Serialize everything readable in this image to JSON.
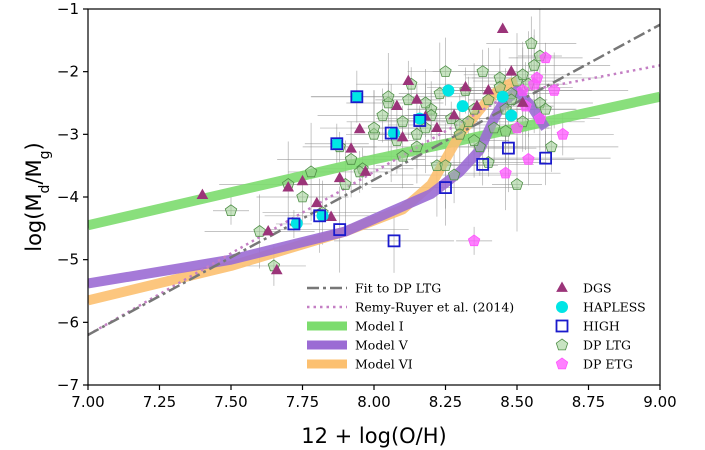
{
  "chart_data": {
    "type": "scatter",
    "xlabel": "12 + log(O/H)",
    "ylabel": "log(M_d/M_g)",
    "xlim": [
      7.0,
      9.0
    ],
    "ylim": [
      -7,
      -1
    ],
    "xticks": [
      "7.00",
      "7.25",
      "7.50",
      "7.75",
      "8.00",
      "8.25",
      "8.50",
      "8.75",
      "9.00"
    ],
    "yticks": [
      "−7",
      "−6",
      "−5",
      "−4",
      "−3",
      "−2",
      "−1"
    ],
    "grid": false,
    "legend_position": "lower-right",
    "lines": [
      {
        "name": "Fit to DP LTG",
        "style": "dashdot",
        "color": "#777777",
        "width": 2.5,
        "x": [
          7.0,
          9.0
        ],
        "y": [
          -6.2,
          -1.25
        ]
      },
      {
        "name": "Remy-Ruyer et al. (2014)",
        "style": "dotted",
        "color": "#c47fc4",
        "width": 2.5,
        "x": [
          7.0,
          8.48,
          9.0
        ],
        "y": [
          -6.2,
          -2.35,
          -1.9
        ]
      },
      {
        "name": "Model I",
        "style": "solid",
        "color": "#7cdc6e",
        "width": 10,
        "x": [
          7.0,
          8.0,
          9.0
        ],
        "y": [
          -4.45,
          -3.4,
          -2.4
        ]
      },
      {
        "name": "Model V",
        "style": "solid",
        "color": "#9b6bd4",
        "width": 10,
        "x": [
          7.0,
          7.5,
          7.9,
          8.1,
          8.2,
          8.3,
          8.37,
          8.42,
          8.45,
          8.5,
          8.55,
          8.6
        ],
        "y": [
          -5.38,
          -5.0,
          -4.55,
          -4.15,
          -3.95,
          -3.6,
          -3.25,
          -2.75,
          -2.5,
          -2.3,
          -2.55,
          -2.9
        ]
      },
      {
        "name": "Model VI",
        "style": "solid",
        "color": "#fcc070",
        "width": 10,
        "x": [
          7.0,
          7.5,
          7.9,
          8.1,
          8.2,
          8.25,
          8.3,
          8.38,
          8.42,
          8.47,
          8.5
        ],
        "y": [
          -5.65,
          -5.1,
          -4.55,
          -4.2,
          -3.8,
          -3.4,
          -3.0,
          -2.55,
          -2.35,
          -2.2,
          -2.15
        ]
      }
    ],
    "series": [
      {
        "name": "DGS",
        "marker": "triangle",
        "color": "#9b3479",
        "x": [
          7.4,
          7.63,
          7.66,
          7.7,
          7.75,
          7.8,
          7.85,
          7.88,
          7.92,
          7.95,
          7.97,
          8.08,
          8.1,
          8.12,
          8.15,
          8.18,
          8.22,
          8.28,
          8.32,
          8.36,
          8.4,
          8.45,
          8.48,
          8.52
        ],
        "y": [
          -3.97,
          -4.55,
          -5.17,
          -3.85,
          -3.75,
          -4.1,
          -4.32,
          -3.7,
          -3.23,
          -2.92,
          -3.6,
          -2.55,
          -3.05,
          -2.15,
          -2.45,
          -2.72,
          -2.9,
          -2.7,
          -2.25,
          -2.55,
          -2.3,
          -1.32,
          -2.0,
          -2.5
        ]
      },
      {
        "name": "HAPLESS",
        "marker": "circle",
        "color": "#00e5e5",
        "x": [
          7.73,
          7.82,
          7.87,
          7.94,
          8.07,
          8.16,
          8.26,
          8.31,
          8.45,
          8.48
        ],
        "y": [
          -4.42,
          -4.3,
          -3.15,
          -2.4,
          -2.98,
          -2.75,
          -2.3,
          -2.55,
          -2.4,
          -2.7
        ]
      },
      {
        "name": "HIGH",
        "marker": "square",
        "color": "#1a1acc",
        "x": [
          7.72,
          7.81,
          7.87,
          7.88,
          7.94,
          8.06,
          8.07,
          8.16,
          8.25,
          8.38,
          8.47,
          8.6
        ],
        "y": [
          -4.43,
          -4.3,
          -3.15,
          -4.52,
          -2.4,
          -2.98,
          -4.7,
          -2.78,
          -3.85,
          -3.48,
          -3.22,
          -3.38
        ]
      },
      {
        "name": "DP LTG",
        "marker": "pentagon",
        "color": "#9acd8f",
        "x": [
          7.5,
          7.6,
          7.65,
          7.7,
          7.75,
          7.78,
          7.82,
          7.88,
          7.92,
          7.96,
          8.0,
          8.03,
          8.05,
          8.08,
          8.1,
          8.12,
          8.15,
          8.18,
          8.2,
          8.22,
          8.25,
          8.27,
          8.3,
          8.32,
          8.35,
          8.37,
          8.4,
          8.42,
          8.44,
          8.46,
          8.48,
          8.5,
          8.52,
          8.54,
          8.56,
          8.58,
          8.6,
          8.62,
          8.5,
          8.46,
          8.4,
          8.35,
          8.3,
          8.25,
          8.2,
          8.15,
          8.1,
          8.05,
          8.0,
          7.95,
          7.9,
          8.55,
          8.58,
          8.52,
          8.48,
          8.44,
          8.38,
          8.33,
          8.28,
          8.23,
          8.18,
          8.13
        ],
        "y": [
          -4.22,
          -4.55,
          -5.1,
          -3.8,
          -4.0,
          -3.6,
          -4.25,
          -3.2,
          -3.4,
          -3.55,
          -3.0,
          -2.7,
          -2.5,
          -3.1,
          -2.8,
          -2.45,
          -3.2,
          -2.9,
          -2.6,
          -3.5,
          -2.0,
          -2.75,
          -3.0,
          -2.3,
          -2.6,
          -3.2,
          -2.45,
          -2.9,
          -2.1,
          -2.6,
          -2.35,
          -3.8,
          -2.8,
          -2.2,
          -1.9,
          -2.5,
          -2.6,
          -3.2,
          -2.15,
          -2.95,
          -3.45,
          -3.1,
          -2.85,
          -3.5,
          -2.7,
          -3.0,
          -3.35,
          -2.4,
          -2.9,
          -3.6,
          -3.8,
          -1.55,
          -1.75,
          -2.05,
          -2.45,
          -2.25,
          -2.0,
          -2.8,
          -3.65,
          -2.35,
          -2.5,
          -2.2
        ]
      },
      {
        "name": "DP ETG",
        "marker": "pentagon",
        "color": "#ff55ff",
        "x": [
          8.35,
          8.46,
          8.5,
          8.52,
          8.54,
          8.56,
          8.58,
          8.6,
          8.63,
          8.66,
          8.53,
          8.57
        ],
        "y": [
          -4.7,
          -3.62,
          -2.9,
          -2.3,
          -3.4,
          -2.2,
          -2.75,
          -1.78,
          -2.3,
          -3.0,
          -2.55,
          -2.1
        ]
      }
    ],
    "legend": {
      "col1": [
        "Fit to DP LTG",
        "Remy-Ruyer et al. (2014)",
        "Model I",
        "Model V",
        "Model VI"
      ],
      "col2": [
        "DGS",
        "HAPLESS",
        "HIGH",
        "DP LTG",
        "DP ETG"
      ]
    }
  }
}
